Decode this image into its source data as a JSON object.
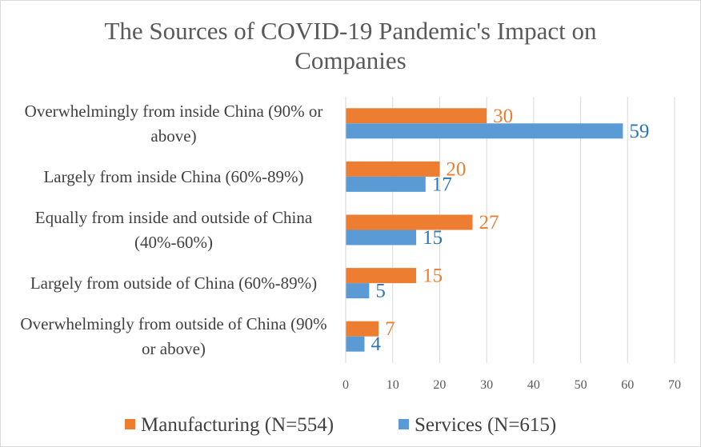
{
  "chart_data": {
    "type": "bar",
    "orientation": "horizontal",
    "title": "The Sources of COVID-19 Pandemic's Impact on Companies",
    "categories": [
      "Overwhelmingly from inside China (90% or above)",
      "Largely from inside China (60%-89%)",
      "Equally from inside and outside of China (40%-60%)",
      "Largely from outside of China (60%-89%)",
      "Overwhelmingly from outside of China (90% or above)"
    ],
    "series": [
      {
        "name": "Manufacturing (N=554)",
        "color": "#ED7D31",
        "values": [
          30,
          20,
          27,
          15,
          7
        ]
      },
      {
        "name": "Services (N=615)",
        "color": "#5B9BD5",
        "values": [
          59,
          17,
          15,
          5,
          4
        ]
      }
    ],
    "data_label_colors": [
      "#ED7D31",
      "#2E75B6"
    ],
    "xlim": [
      0,
      70
    ],
    "xticks": [
      0,
      10,
      20,
      30,
      40,
      50,
      60,
      70
    ],
    "grid": true,
    "legend_position": "bottom"
  }
}
